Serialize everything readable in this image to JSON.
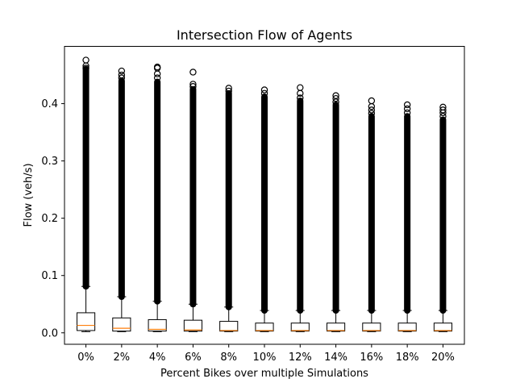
{
  "chart_data": {
    "type": "box",
    "title": "Intersection Flow of Agents",
    "xlabel": "Percent Bikes over multiple Simulations",
    "ylabel": "Flow (veh/s)",
    "ylim": [
      -0.02,
      0.5
    ],
    "yticks": [
      0.0,
      0.1,
      0.2,
      0.3,
      0.4
    ],
    "ytick_labels": [
      "0.0",
      "0.1",
      "0.2",
      "0.3",
      "0.4"
    ],
    "grid": false,
    "legend": "none",
    "colors": {
      "box": "#000000",
      "median": "#ff7f0e",
      "outlier": "#000000"
    },
    "categories": [
      "0%",
      "2%",
      "4%",
      "6%",
      "8%",
      "10%",
      "12%",
      "14%",
      "16%",
      "18%",
      "20%"
    ],
    "series": [
      {
        "category": "0%",
        "whisker_low": 0.002,
        "q1": 0.004,
        "median": 0.013,
        "q3": 0.035,
        "whisker_high": 0.081,
        "outlier_dense_top": 0.46,
        "outliers_sparse": [
          0.462,
          0.466,
          0.476
        ]
      },
      {
        "category": "2%",
        "whisker_low": 0.002,
        "q1": 0.003,
        "median": 0.008,
        "q3": 0.026,
        "whisker_high": 0.063,
        "outlier_dense_top": 0.44,
        "outliers_sparse": [
          0.445,
          0.45,
          0.457
        ]
      },
      {
        "category": "4%",
        "whisker_low": 0.002,
        "q1": 0.003,
        "median": 0.006,
        "q3": 0.023,
        "whisker_high": 0.055,
        "outlier_dense_top": 0.438,
        "outliers_sparse": [
          0.445,
          0.452,
          0.462,
          0.464
        ]
      },
      {
        "category": "6%",
        "whisker_low": 0.002,
        "q1": 0.003,
        "median": 0.005,
        "q3": 0.022,
        "whisker_high": 0.05,
        "outlier_dense_top": 0.425,
        "outliers_sparse": [
          0.43,
          0.434,
          0.455
        ]
      },
      {
        "category": "8%",
        "whisker_low": 0.002,
        "q1": 0.003,
        "median": 0.004,
        "q3": 0.02,
        "whisker_high": 0.045,
        "outlier_dense_top": 0.418,
        "outliers_sparse": [
          0.422,
          0.427
        ]
      },
      {
        "category": "10%",
        "whisker_low": 0.002,
        "q1": 0.003,
        "median": 0.004,
        "q3": 0.017,
        "whisker_high": 0.039,
        "outlier_dense_top": 0.412,
        "outliers_sparse": [
          0.418,
          0.424
        ]
      },
      {
        "category": "12%",
        "whisker_low": 0.002,
        "q1": 0.003,
        "median": 0.004,
        "q3": 0.017,
        "whisker_high": 0.039,
        "outlier_dense_top": 0.405,
        "outliers_sparse": [
          0.41,
          0.418,
          0.428
        ]
      },
      {
        "category": "14%",
        "whisker_low": 0.002,
        "q1": 0.003,
        "median": 0.004,
        "q3": 0.017,
        "whisker_high": 0.039,
        "outlier_dense_top": 0.398,
        "outliers_sparse": [
          0.403,
          0.409,
          0.414
        ]
      },
      {
        "category": "16%",
        "whisker_low": 0.002,
        "q1": 0.003,
        "median": 0.004,
        "q3": 0.017,
        "whisker_high": 0.039,
        "outlier_dense_top": 0.378,
        "outliers_sparse": [
          0.383,
          0.389,
          0.395,
          0.405
        ]
      },
      {
        "category": "18%",
        "whisker_low": 0.002,
        "q1": 0.003,
        "median": 0.004,
        "q3": 0.017,
        "whisker_high": 0.039,
        "outlier_dense_top": 0.378,
        "outliers_sparse": [
          0.384,
          0.391,
          0.398
        ]
      },
      {
        "category": "20%",
        "whisker_low": 0.002,
        "q1": 0.003,
        "median": 0.004,
        "q3": 0.017,
        "whisker_high": 0.039,
        "outlier_dense_top": 0.372,
        "outliers_sparse": [
          0.378,
          0.384,
          0.389,
          0.394
        ]
      }
    ]
  }
}
